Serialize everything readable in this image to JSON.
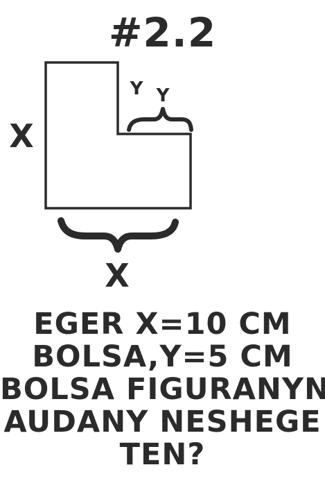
{
  "title": "#2.2",
  "diagram": {
    "label_left": "X",
    "label_bottom": "X",
    "label_y_left": "Y",
    "label_y_right": "Y"
  },
  "question": {
    "lines": [
      "EGER X=10 CM",
      "BOLSA,Y=5 CM",
      "BOLSA FIGURANYN",
      "AUDANY NESHEGE",
      "TEN?"
    ]
  },
  "colors": {
    "ink": "#2b2b2b",
    "background": "#ffffff"
  }
}
